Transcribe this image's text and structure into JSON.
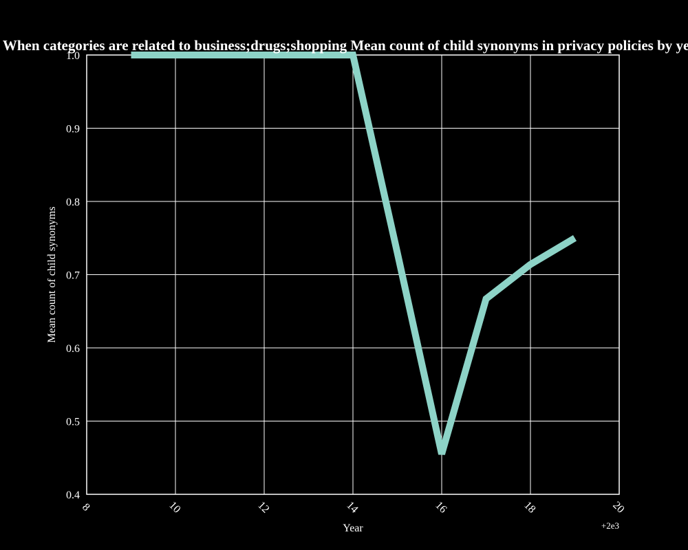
{
  "chart_data": {
    "type": "line",
    "title": "When categories are related to business;drugs;shopping Mean count of child synonyms in privacy policies by year",
    "xlabel": "Year",
    "ylabel": "Mean count of child synonyms",
    "x_offset_label": "+2e3",
    "xlim": [
      8,
      20
    ],
    "ylim": [
      0.4,
      1.0
    ],
    "x_ticks": [
      8,
      10,
      12,
      14,
      16,
      18,
      20
    ],
    "x_tick_labels": [
      "8",
      "10",
      "12",
      "14",
      "16",
      "18",
      "20"
    ],
    "y_ticks": [
      0.4,
      0.5,
      0.6,
      0.7,
      0.8,
      0.9,
      1.0
    ],
    "y_tick_labels": [
      "0.4",
      "0.5",
      "0.6",
      "0.7",
      "0.8",
      "0.9",
      "1.0"
    ],
    "grid": true,
    "background": "#000000",
    "grid_color": "#ffffff",
    "series": [
      {
        "color": "#8dd3c7",
        "x": [
          9,
          10,
          11,
          12,
          13,
          14,
          15,
          16,
          17,
          18,
          19
        ],
        "y": [
          1.0,
          1.0,
          1.0,
          1.0,
          1.0,
          1.0,
          0.73,
          0.455,
          0.667,
          0.714,
          0.75
        ]
      }
    ]
  }
}
